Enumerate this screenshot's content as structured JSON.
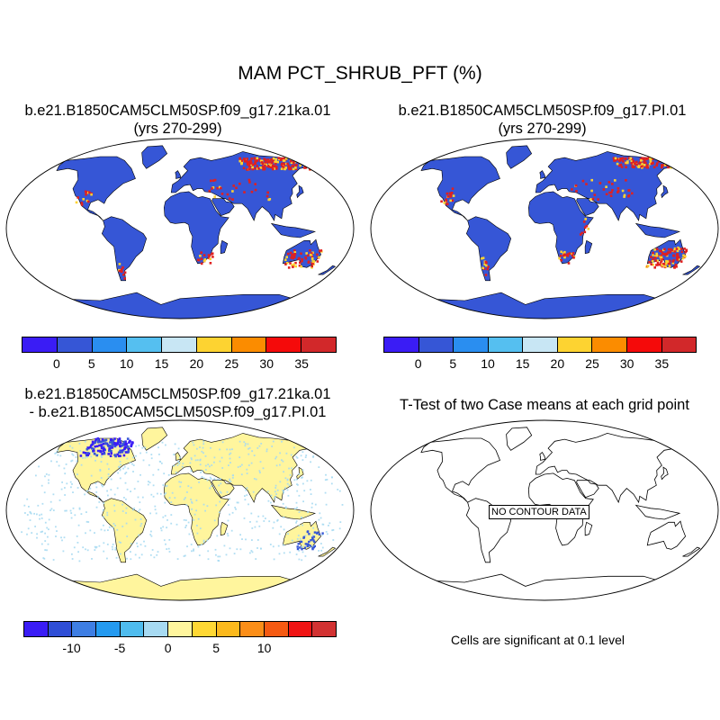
{
  "figure": {
    "title": "MAM PCT_SHRUB_PFT (%)"
  },
  "panels": {
    "top_left": {
      "title_line1": "b.e21.B1850CAM5CLM50SP.f09_g17.21ka.01",
      "title_line2": "(yrs 270-299)"
    },
    "top_right": {
      "title_line1": "b.e21.B1850CAM5CLM50SP.f09_g17.PI.01",
      "title_line2": "(yrs 270-299)"
    },
    "bottom_left": {
      "title_line1": "b.e21.B1850CAM5CLM50SP.f09_g17.21ka.01",
      "title_line2": "- b.e21.B1850CAM5CLM50SP.f09_g17.PI.01"
    },
    "bottom_right": {
      "title_line1": "T-Test of two Case means at each grid point",
      "no_data_label": "NO CONTOUR DATA",
      "note": "Cells are significant at 0.1 level"
    }
  },
  "colorbars": {
    "absolute": {
      "colors": [
        "#3a1cf5",
        "#3656d6",
        "#2a8ef0",
        "#55bff0",
        "#c8e6f4",
        "#fdd331",
        "#fb8c00",
        "#f50a0a",
        "#d2282a"
      ],
      "tick_labels": [
        "0",
        "5",
        "10",
        "15",
        "20",
        "25",
        "30",
        "35"
      ]
    },
    "difference": {
      "colors": [
        "#3a1cf5",
        "#2f4ed6",
        "#3e7ee3",
        "#249af0",
        "#4fbcee",
        "#a7daf2",
        "#fff59d",
        "#ffd834",
        "#fbb91d",
        "#fb8e18",
        "#f55a12",
        "#f01414",
        "#d23232"
      ],
      "tick_labels": [
        "-10",
        "-5",
        "0",
        "5",
        "10"
      ]
    }
  },
  "map_colors": {
    "absolute_land": "#3656d6",
    "absolute_high": "#e02020",
    "absolute_mid": "#fdd331",
    "difference_land": "#fff59d",
    "difference_low": "#3a1cf5",
    "difference_light": "#a7daf2"
  }
}
